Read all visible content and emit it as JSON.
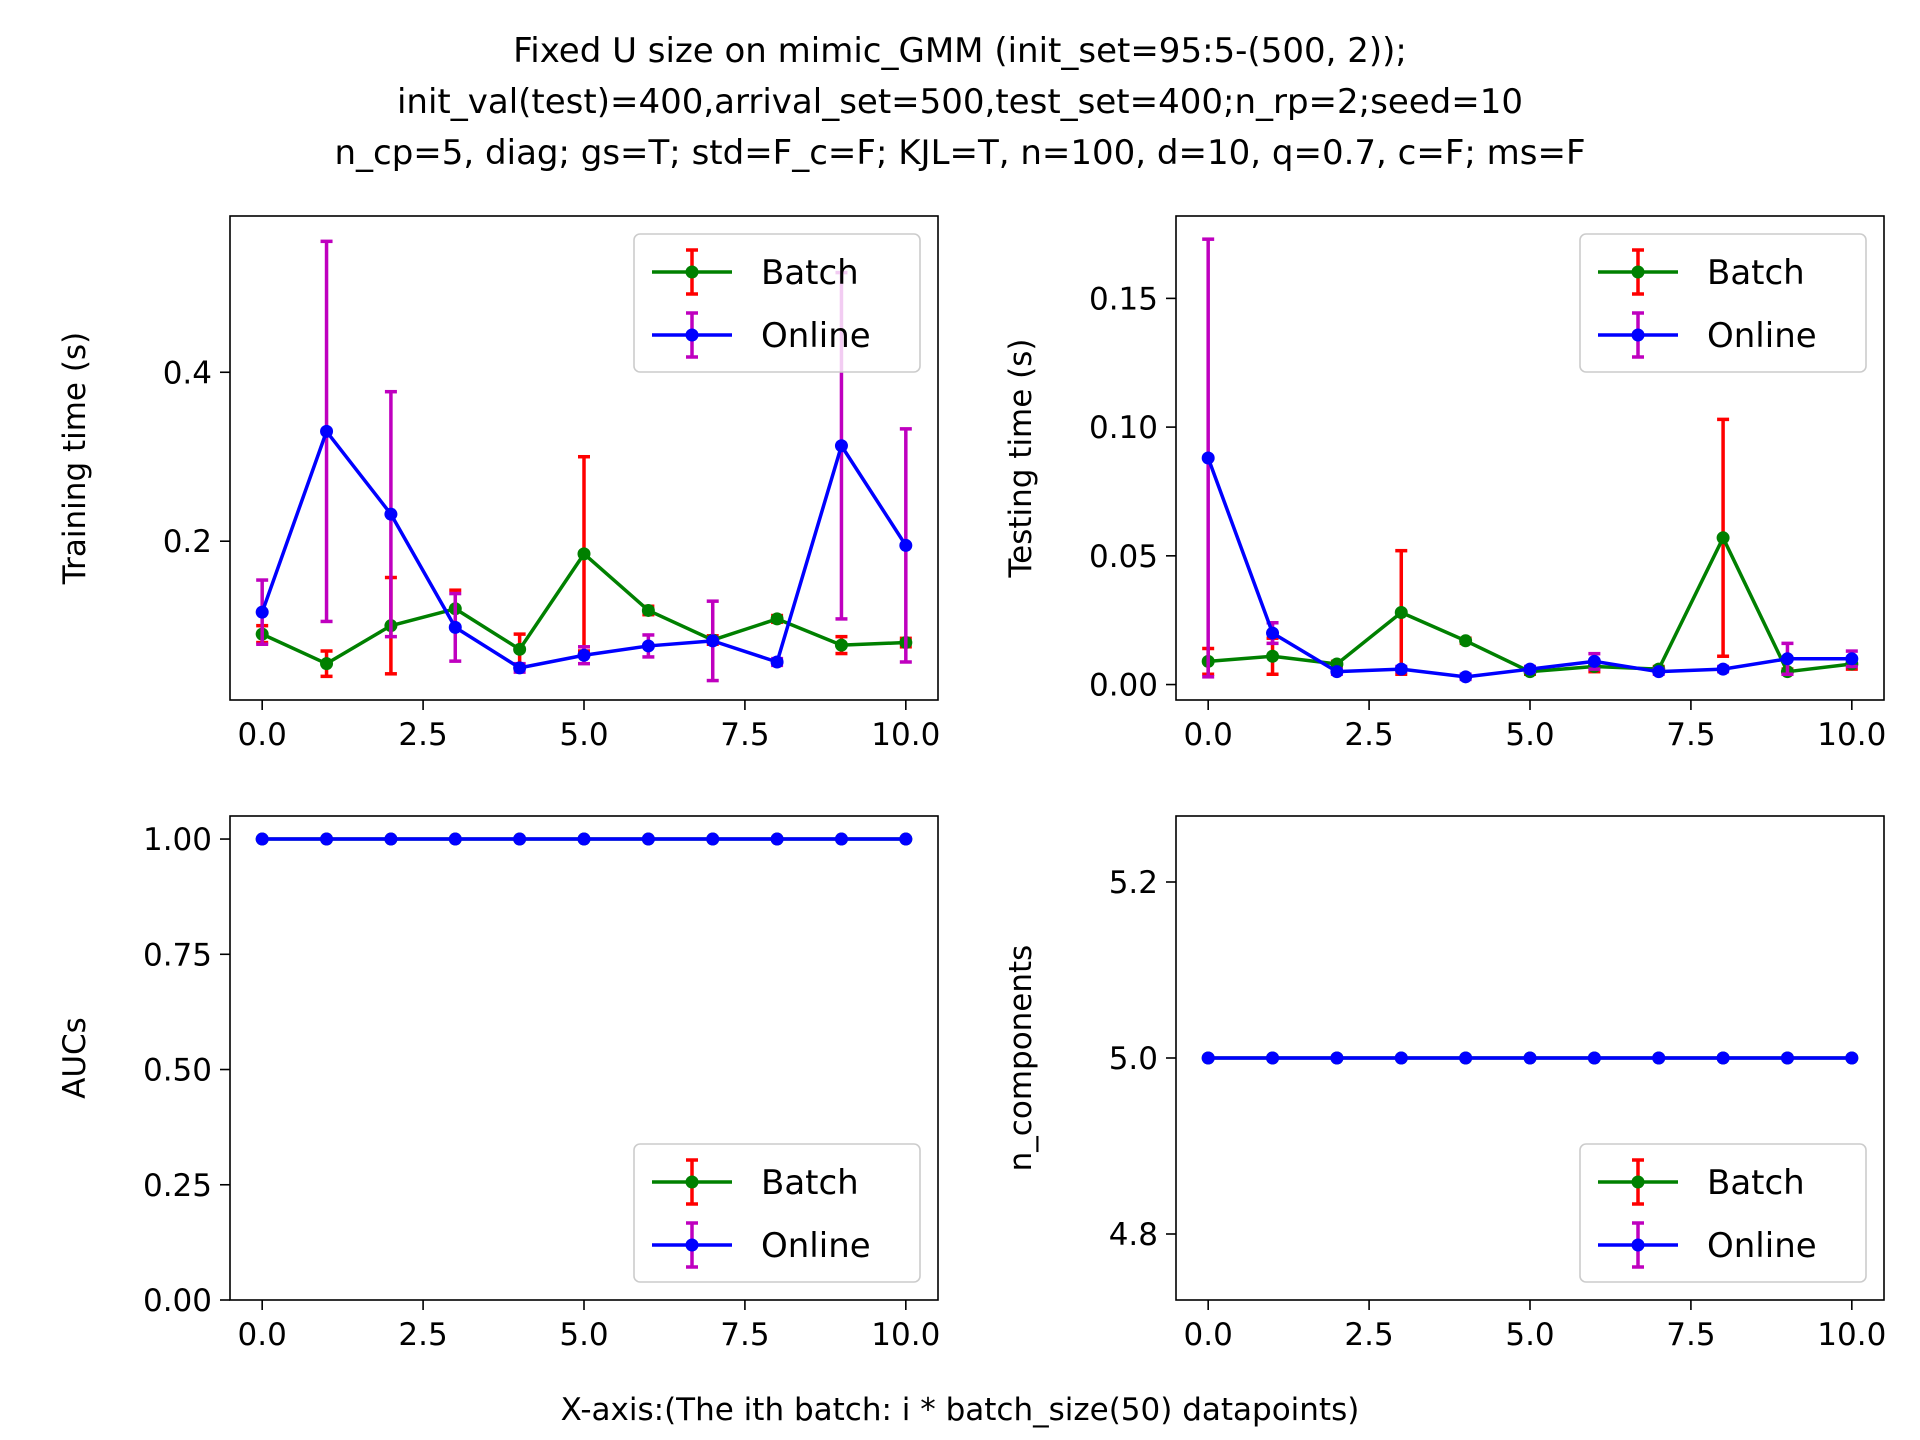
{
  "figure": {
    "title_lines": [
      "Fixed U size on mimic_GMM (init_set=95:5-(500, 2));",
      "init_val(test)=400,arrival_set=500,test_set=400;n_rp=2;seed=10",
      "n_cp=5, diag; gs=T; std=F_c=F; KJL=T, n=100, d=10, q=0.7, c=F; ms=F"
    ],
    "xlabel": "X-axis:(The ith batch: i * batch_size(50) datapoints)",
    "colors": {
      "batch_line": "#008000",
      "batch_err": "#ff0000",
      "online_line": "#0000ff",
      "online_err": "#bf00bf"
    }
  },
  "chart_data": [
    {
      "type": "line",
      "ylabel": "Training time (s)",
      "xlim": [
        -0.5,
        10.5
      ],
      "ylim": [
        0.012,
        0.585
      ],
      "xticks": [
        0.0,
        2.5,
        5.0,
        7.5,
        10.0
      ],
      "xtick_labels": [
        "0.0",
        "2.5",
        "5.0",
        "7.5",
        "10.0"
      ],
      "yticks": [
        0.2,
        0.4
      ],
      "ytick_labels": [
        "0.2",
        "0.4"
      ],
      "legend_loc": "upper right",
      "x": [
        0,
        1,
        2,
        3,
        4,
        5,
        6,
        7,
        8,
        9,
        10
      ],
      "series": [
        {
          "name": "Batch",
          "values": [
            0.09,
            0.055,
            0.1,
            0.12,
            0.072,
            0.185,
            0.118,
            0.083,
            0.108,
            0.077,
            0.08
          ],
          "errors": [
            0.01,
            0.015,
            0.057,
            0.022,
            0.018,
            0.115,
            0.005,
            0.005,
            0.004,
            0.01,
            0.005
          ]
        },
        {
          "name": "Online",
          "values": [
            0.116,
            0.33,
            0.232,
            0.098,
            0.05,
            0.065,
            0.076,
            0.082,
            0.057,
            0.313,
            0.195
          ],
          "errors": [
            0.038,
            0.225,
            0.145,
            0.04,
            0.005,
            0.01,
            0.013,
            0.047,
            0.004,
            0.205,
            0.138
          ]
        }
      ]
    },
    {
      "type": "line",
      "ylabel": "Testing time (s)",
      "xlim": [
        -0.5,
        10.5
      ],
      "ylim": [
        -0.006,
        0.182
      ],
      "xticks": [
        0.0,
        2.5,
        5.0,
        7.5,
        10.0
      ],
      "xtick_labels": [
        "0.0",
        "2.5",
        "5.0",
        "7.5",
        "10.0"
      ],
      "yticks": [
        0.0,
        0.05,
        0.1,
        0.15
      ],
      "ytick_labels": [
        "0.00",
        "0.05",
        "0.10",
        "0.15"
      ],
      "legend_loc": "upper right",
      "x": [
        0,
        1,
        2,
        3,
        4,
        5,
        6,
        7,
        8,
        9,
        10
      ],
      "series": [
        {
          "name": "Batch",
          "values": [
            0.009,
            0.011,
            0.008,
            0.028,
            0.017,
            0.005,
            0.007,
            0.006,
            0.057,
            0.005,
            0.008
          ],
          "errors": [
            0.005,
            0.007,
            0.001,
            0.024,
            0.001,
            0.001,
            0.002,
            0.001,
            0.046,
            0.001,
            0.002
          ]
        },
        {
          "name": "Online",
          "values": [
            0.088,
            0.02,
            0.005,
            0.006,
            0.003,
            0.006,
            0.009,
            0.005,
            0.006,
            0.01,
            0.01
          ],
          "errors": [
            0.085,
            0.004,
            0.001,
            0.001,
            0.001,
            0.001,
            0.003,
            0.001,
            0.001,
            0.006,
            0.003
          ]
        }
      ]
    },
    {
      "type": "line",
      "ylabel": "AUCs",
      "xlim": [
        -0.5,
        10.5
      ],
      "ylim": [
        0.0,
        1.05
      ],
      "xticks": [
        0.0,
        2.5,
        5.0,
        7.5,
        10.0
      ],
      "xtick_labels": [
        "0.0",
        "2.5",
        "5.0",
        "7.5",
        "10.0"
      ],
      "yticks": [
        0.0,
        0.25,
        0.5,
        0.75,
        1.0
      ],
      "ytick_labels": [
        "0.00",
        "0.25",
        "0.50",
        "0.75",
        "1.00"
      ],
      "legend_loc": "lower right",
      "x": [
        0,
        1,
        2,
        3,
        4,
        5,
        6,
        7,
        8,
        9,
        10
      ],
      "series": [
        {
          "name": "Batch",
          "values": [
            1.0,
            1.0,
            1.0,
            1.0,
            1.0,
            1.0,
            1.0,
            1.0,
            1.0,
            1.0,
            1.0
          ],
          "errors": [
            0,
            0,
            0,
            0,
            0,
            0,
            0,
            0,
            0,
            0,
            0
          ]
        },
        {
          "name": "Online",
          "values": [
            1.0,
            1.0,
            1.0,
            1.0,
            1.0,
            1.0,
            1.0,
            1.0,
            1.0,
            1.0,
            1.0
          ],
          "errors": [
            0,
            0,
            0,
            0,
            0,
            0,
            0,
            0,
            0,
            0,
            0
          ]
        }
      ]
    },
    {
      "type": "line",
      "ylabel": "n_components",
      "xlim": [
        -0.5,
        10.5
      ],
      "ylim": [
        4.725,
        5.275
      ],
      "xticks": [
        0.0,
        2.5,
        5.0,
        7.5,
        10.0
      ],
      "xtick_labels": [
        "0.0",
        "2.5",
        "5.0",
        "7.5",
        "10.0"
      ],
      "yticks": [
        4.8,
        5.0,
        5.2
      ],
      "ytick_labels": [
        "4.8",
        "5.0",
        "5.2"
      ],
      "legend_loc": "lower right",
      "x": [
        0,
        1,
        2,
        3,
        4,
        5,
        6,
        7,
        8,
        9,
        10
      ],
      "series": [
        {
          "name": "Batch",
          "values": [
            5,
            5,
            5,
            5,
            5,
            5,
            5,
            5,
            5,
            5,
            5
          ],
          "errors": [
            0,
            0,
            0,
            0,
            0,
            0,
            0,
            0,
            0,
            0,
            0
          ]
        },
        {
          "name": "Online",
          "values": [
            5,
            5,
            5,
            5,
            5,
            5,
            5,
            5,
            5,
            5,
            5
          ],
          "errors": [
            0,
            0,
            0,
            0,
            0,
            0,
            0,
            0,
            0,
            0,
            0
          ]
        }
      ]
    }
  ]
}
